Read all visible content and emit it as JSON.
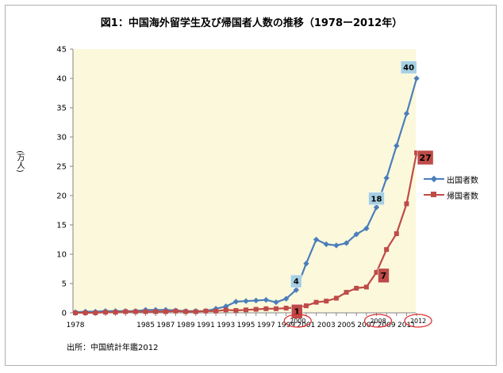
{
  "chart_data": {
    "type": "line",
    "title": "図1：中国海外留学生及び帰国者人数の推移（1978ー2012年）",
    "ylabel": "(万人)",
    "xlabel": "",
    "ylim": [
      0,
      45
    ],
    "yticks": [
      0,
      5,
      10,
      15,
      20,
      25,
      30,
      35,
      40,
      45
    ],
    "grid": false,
    "legend": "right",
    "x": [
      1978,
      1979,
      1980,
      1981,
      1982,
      1983,
      1984,
      1985,
      1986,
      1987,
      1988,
      1989,
      1990,
      1991,
      1992,
      1993,
      1994,
      1995,
      1996,
      1997,
      1998,
      1999,
      2000,
      2001,
      2002,
      2003,
      2004,
      2005,
      2006,
      2007,
      2008,
      2009,
      2010,
      2011,
      2012
    ],
    "xtick_labels": [
      "1978",
      "1985",
      "1987",
      "1989",
      "1991",
      "1993",
      "1995",
      "1997",
      "1999",
      "2001",
      "2003",
      "2005",
      "2007",
      "2009",
      "2011"
    ],
    "series": [
      {
        "name": "出国者数",
        "color": "#4a7ebb",
        "marker": "diamond",
        "values": [
          0.1,
          0.2,
          0.2,
          0.3,
          0.3,
          0.3,
          0.3,
          0.5,
          0.5,
          0.5,
          0.4,
          0.3,
          0.3,
          0.3,
          0.7,
          1.1,
          1.9,
          2.0,
          2.1,
          2.2,
          1.8,
          2.4,
          3.9,
          8.4,
          12.5,
          11.7,
          11.5,
          11.9,
          13.4,
          14.4,
          18.0,
          23.0,
          28.5,
          34.0,
          40.0
        ]
      },
      {
        "name": "帰国者数",
        "color": "#be4b48",
        "marker": "square",
        "values": [
          0.0,
          0.0,
          0.0,
          0.1,
          0.1,
          0.2,
          0.2,
          0.2,
          0.2,
          0.2,
          0.3,
          0.2,
          0.2,
          0.3,
          0.3,
          0.5,
          0.4,
          0.5,
          0.6,
          0.7,
          0.7,
          0.8,
          0.9,
          1.2,
          1.8,
          2.0,
          2.5,
          3.5,
          4.2,
          4.4,
          6.9,
          10.8,
          13.5,
          18.6,
          27.3
        ]
      }
    ],
    "data_labels": [
      {
        "series": 0,
        "x": 2000,
        "text": "4",
        "bg": "#a6cfe2"
      },
      {
        "series": 0,
        "x": 2008,
        "text": "18",
        "bg": "#a6cfe2"
      },
      {
        "series": 0,
        "x": 2012,
        "text": "40",
        "bg": "#a6cfe2"
      },
      {
        "series": 1,
        "x": 2000,
        "text": "1",
        "bg": "#be4b48"
      },
      {
        "series": 1,
        "x": 2008,
        "text": "7",
        "bg": "#be4b48"
      },
      {
        "series": 1,
        "x": 2012,
        "text": "27",
        "bg": "#be4b48"
      }
    ],
    "circled_years": [
      "2000",
      "2008",
      "2012"
    ]
  },
  "source_note": "出所：中国統計年鑑2012"
}
